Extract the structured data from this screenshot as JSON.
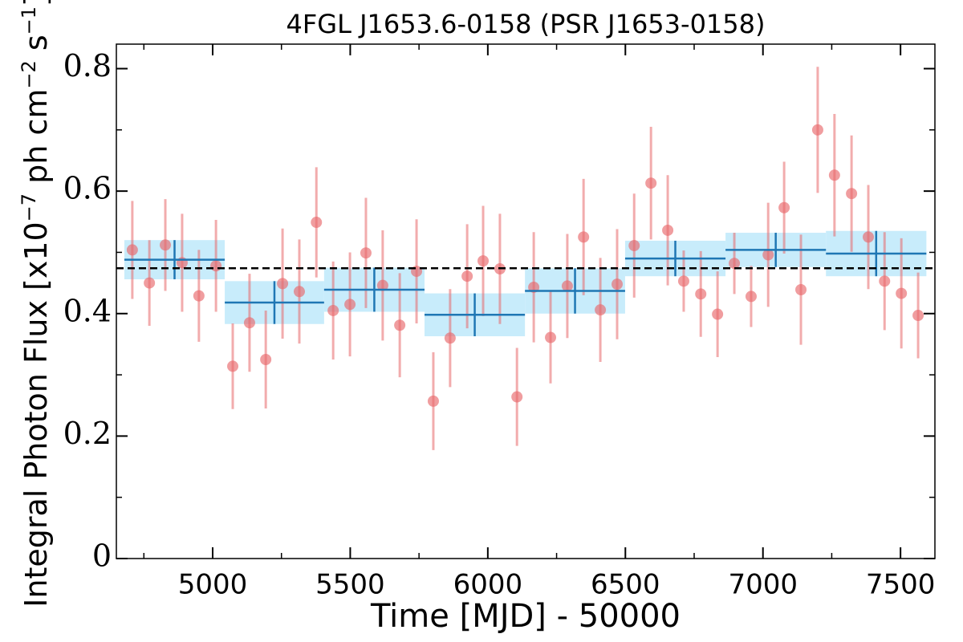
{
  "chart_data": {
    "type": "scatter",
    "title": "4FGL J1653.6-0158 (PSR J1653-0158)",
    "x_label": "Time [MJD] - 50000",
    "y_label_parts": [
      "Integral Photon Flux [x10",
      "−7",
      " ph cm",
      "−2",
      " s",
      "−1",
      "]"
    ],
    "xlim": [
      4650,
      7625
    ],
    "ylim": [
      0,
      0.84
    ],
    "xticks": [
      5000,
      5500,
      6000,
      6500,
      7000,
      7500
    ],
    "yticks": [
      0,
      0.2,
      0.4,
      0.6,
      0.8
    ],
    "x_minor_ticks": [
      4750,
      5250,
      5750,
      6250,
      6750,
      7250
    ],
    "y_minor_ticks": [
      0.1,
      0.3,
      0.5,
      0.7
    ],
    "points": {
      "color": "#e8696b",
      "x": [
        4708,
        4770,
        4828,
        4889,
        4950,
        5012,
        5073,
        5134,
        5193,
        5254,
        5315,
        5377,
        5438,
        5499,
        5557,
        5618,
        5680,
        5741,
        5802,
        5863,
        5925,
        5983,
        6044,
        6106,
        6167,
        6228,
        6289,
        6348,
        6409,
        6470,
        6532,
        6593,
        6654,
        6712,
        6774,
        6835,
        6896,
        6957,
        7019,
        7077,
        7138,
        7199,
        7260,
        7322,
        7383,
        7442,
        7503,
        7564
      ],
      "y": [
        0.504,
        0.45,
        0.512,
        0.483,
        0.429,
        0.478,
        0.314,
        0.385,
        0.325,
        0.449,
        0.436,
        0.549,
        0.405,
        0.415,
        0.499,
        0.446,
        0.381,
        0.469,
        0.257,
        0.36,
        0.461,
        0.486,
        0.473,
        0.264,
        0.443,
        0.361,
        0.445,
        0.525,
        0.406,
        0.448,
        0.511,
        0.613,
        0.536,
        0.453,
        0.432,
        0.399,
        0.482,
        0.428,
        0.496,
        0.573,
        0.439,
        0.7,
        0.626,
        0.596,
        0.525,
        0.453,
        0.433,
        0.397
      ],
      "yerr": [
        0.08,
        0.07,
        0.075,
        0.08,
        0.075,
        0.075,
        0.07,
        0.08,
        0.08,
        0.09,
        0.085,
        0.09,
        0.08,
        0.085,
        0.09,
        0.09,
        0.085,
        0.085,
        0.08,
        0.08,
        0.085,
        0.09,
        0.09,
        0.08,
        0.09,
        0.075,
        0.085,
        0.095,
        0.085,
        0.09,
        0.085,
        0.092,
        0.09,
        0.05,
        0.07,
        0.07,
        0.05,
        0.05,
        0.085,
        0.075,
        0.09,
        0.103,
        0.1,
        0.095,
        0.085,
        0.08,
        0.09,
        0.07
      ]
    },
    "bins": {
      "line_color": "#1f77b4",
      "band_color": "#c8ecfb",
      "x_start": [
        4679,
        5044,
        5405,
        5770,
        6135,
        6499,
        6864,
        7229
      ],
      "x_end": [
        5044,
        5405,
        5770,
        6135,
        6499,
        6864,
        7229,
        7594
      ],
      "y": [
        0.488,
        0.418,
        0.439,
        0.398,
        0.437,
        0.49,
        0.504,
        0.498
      ],
      "yerr": [
        0.032,
        0.035,
        0.036,
        0.035,
        0.037,
        0.029,
        0.028,
        0.037
      ]
    },
    "average": 0.474
  }
}
